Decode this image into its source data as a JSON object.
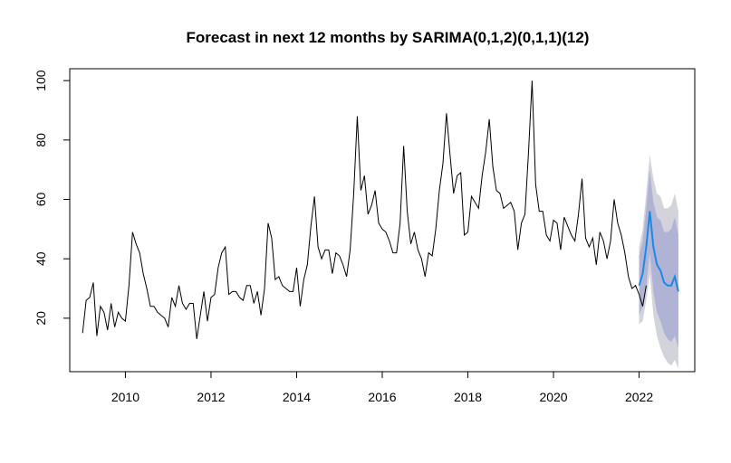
{
  "chart_data": {
    "type": "line",
    "title": "Forecast in next 12 months by SARIMA(0,1,2)(0,1,1)(12)",
    "xlabel": "",
    "ylabel": "",
    "xlim": [
      2008.7,
      2023.3
    ],
    "ylim": [
      2,
      104
    ],
    "x_ticks": [
      2010,
      2012,
      2014,
      2016,
      2018,
      2020,
      2022
    ],
    "y_ticks": [
      20,
      40,
      60,
      80,
      100
    ],
    "grid": false,
    "legend": "none",
    "x_start": 2009.0,
    "x_step_months": 1,
    "series": [
      {
        "role": "observed",
        "color": "#000000",
        "values": [
          15,
          26,
          27,
          32,
          14,
          24,
          22,
          16,
          25,
          17,
          22,
          20,
          19,
          31,
          49,
          45,
          42,
          35,
          30,
          24,
          24,
          22,
          21,
          20,
          17,
          27,
          24,
          31,
          25,
          23,
          25,
          25,
          13,
          21,
          29,
          19,
          27,
          28,
          37,
          42,
          44,
          28,
          29,
          29,
          27,
          26,
          31,
          31,
          25,
          29,
          21,
          30,
          52,
          47,
          33,
          34,
          31,
          30,
          29,
          29,
          37,
          24,
          33,
          38,
          51,
          61,
          44,
          40,
          43,
          43,
          35,
          42,
          41,
          38,
          34,
          43,
          62,
          88,
          63,
          68,
          55,
          58,
          63,
          52,
          50,
          49,
          46,
          42,
          42,
          52,
          78,
          56,
          45,
          49,
          43,
          40,
          34,
          42,
          41,
          50,
          63,
          72,
          89,
          75,
          62,
          68,
          69,
          48,
          49,
          61,
          59,
          57,
          68,
          76,
          87,
          71,
          63,
          62,
          57,
          58,
          59,
          56,
          43,
          52,
          55,
          76,
          100,
          65,
          56,
          56,
          48,
          46,
          53,
          52,
          43,
          54,
          51,
          48,
          46,
          55,
          67,
          47,
          44,
          47,
          38,
          49,
          46,
          40,
          46,
          60,
          52,
          48,
          42,
          34,
          30,
          31,
          28,
          24,
          31
        ]
      }
    ],
    "forecast": {
      "color": "#1e88e5",
      "x_start": 2022.0,
      "x_step_months": 1,
      "mean": [
        31,
        35,
        44,
        56,
        44,
        38,
        36,
        32,
        31,
        31,
        34,
        29
      ],
      "lower80": [
        21,
        24,
        31,
        42,
        29,
        22,
        19,
        15,
        13,
        12,
        14,
        10
      ],
      "upper80": [
        41,
        46,
        57,
        70,
        59,
        54,
        53,
        49,
        49,
        50,
        54,
        48
      ],
      "lower95": [
        18,
        19,
        26,
        35,
        21,
        14,
        10,
        7,
        5,
        4,
        6,
        3
      ],
      "upper95": [
        44,
        50,
        62,
        75,
        67,
        62,
        61,
        57,
        57,
        58,
        62,
        56
      ],
      "band95_color": "#d3d3db",
      "band80_color": "#b0b3d4"
    }
  }
}
